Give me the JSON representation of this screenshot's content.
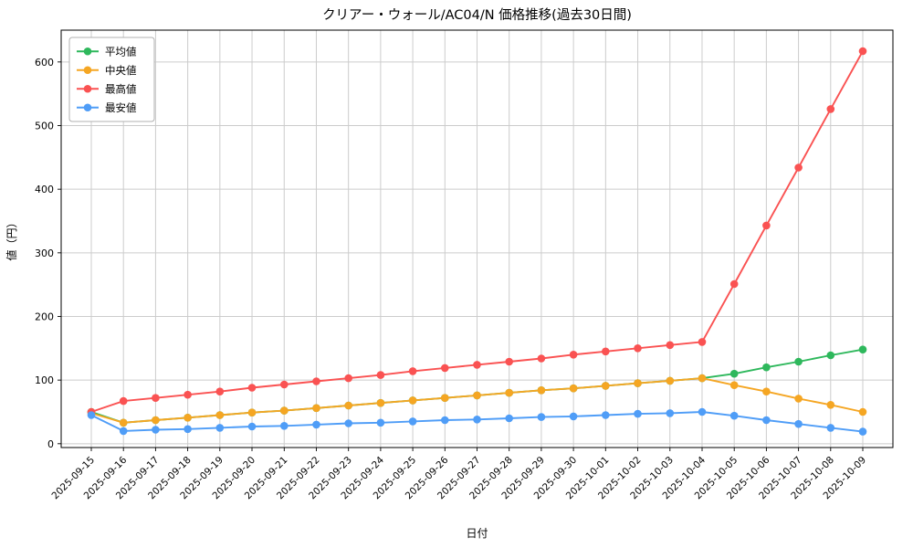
{
  "chart_data": {
    "type": "line",
    "title": "クリアー・ウォール/AC04/N 価格推移(過去30日間)",
    "xlabel": "日付",
    "ylabel": "値（円）",
    "ylim": [
      -6,
      650
    ],
    "yticks": [
      0,
      100,
      200,
      300,
      400,
      500,
      600
    ],
    "grid": true,
    "legend_position": "upper left",
    "categories": [
      "2025-09-15",
      "2025-09-16",
      "2025-09-17",
      "2025-09-18",
      "2025-09-19",
      "2025-09-20",
      "2025-09-21",
      "2025-09-22",
      "2025-09-23",
      "2025-09-24",
      "2025-09-25",
      "2025-09-26",
      "2025-09-27",
      "2025-09-28",
      "2025-09-29",
      "2025-09-30",
      "2025-10-01",
      "2025-10-02",
      "2025-10-03",
      "2025-10-04",
      "2025-10-05",
      "2025-10-06",
      "2025-10-07",
      "2025-10-08",
      "2025-10-09"
    ],
    "series": [
      {
        "name": "平均値",
        "color": "#2eb85c",
        "values": [
          50,
          33,
          37,
          41,
          45,
          49,
          52,
          56,
          60,
          64,
          68,
          72,
          76,
          80,
          84,
          87,
          91,
          95,
          99,
          103,
          110,
          120,
          129,
          139,
          148
        ]
      },
      {
        "name": "中央値",
        "color": "#f5a623",
        "values": [
          48,
          33,
          37,
          41,
          45,
          49,
          52,
          56,
          60,
          64,
          68,
          72,
          76,
          80,
          84,
          87,
          91,
          95,
          99,
          103,
          92,
          82,
          71,
          61,
          50
        ]
      },
      {
        "name": "最高値",
        "color": "#fa5252",
        "values": [
          50,
          67,
          72,
          77,
          82,
          88,
          93,
          98,
          103,
          108,
          114,
          119,
          124,
          129,
          134,
          140,
          145,
          150,
          155,
          160,
          251,
          343,
          434,
          526,
          617
        ]
      },
      {
        "name": "最安値",
        "color": "#4f9df7",
        "values": [
          45,
          20,
          22,
          23,
          25,
          27,
          28,
          30,
          32,
          33,
          35,
          37,
          38,
          40,
          42,
          43,
          45,
          47,
          48,
          50,
          44,
          37,
          31,
          25,
          19
        ]
      }
    ],
    "style": {
      "grid_color": "#cccccc",
      "spine_color": "#000000",
      "background": "#ffffff",
      "legend_border": "#b0b0b0"
    }
  }
}
